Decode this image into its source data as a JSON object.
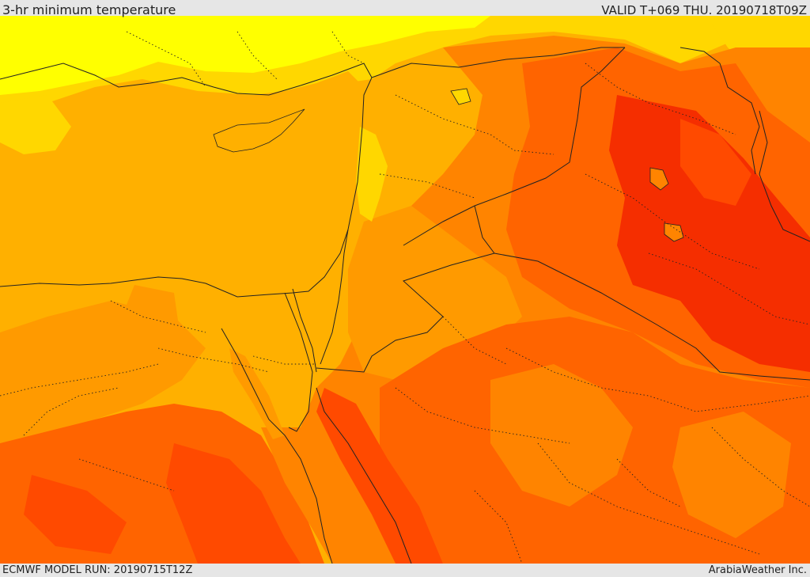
{
  "header": {
    "title": "3-hr minimum temperature",
    "valid": "VALID T+069 THU. 20190718T09Z"
  },
  "footer": {
    "model_run": "ECMWF MODEL RUN: 20190715T12Z",
    "credit": "ArabiaWeather Inc."
  },
  "palette": {
    "yellow": "#ffff00",
    "gold": "#ffd700",
    "amber": "#ffb000",
    "light_orange": "#ff9a00",
    "orange": "#ff8400",
    "dark_orange": "#ff6400",
    "red_orange": "#ff4a00",
    "red": "#f52e00"
  }
}
